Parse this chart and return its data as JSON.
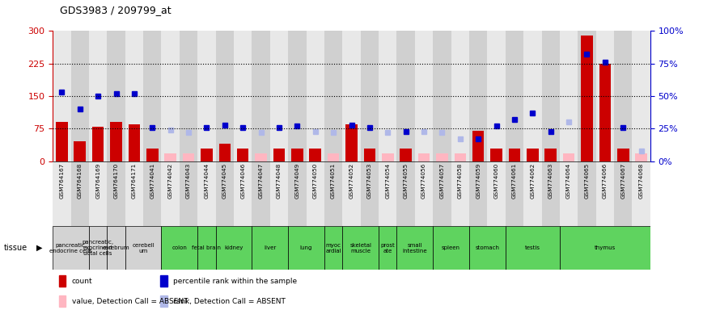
{
  "title": "GDS3983 / 209799_at",
  "samples": [
    "GSM764167",
    "GSM764168",
    "GSM764169",
    "GSM764170",
    "GSM764171",
    "GSM774041",
    "GSM774042",
    "GSM774043",
    "GSM774044",
    "GSM774045",
    "GSM774046",
    "GSM774047",
    "GSM774048",
    "GSM774049",
    "GSM774050",
    "GSM774051",
    "GSM774052",
    "GSM774053",
    "GSM774054",
    "GSM774055",
    "GSM774056",
    "GSM774057",
    "GSM774058",
    "GSM774059",
    "GSM774060",
    "GSM774061",
    "GSM774062",
    "GSM774063",
    "GSM774064",
    "GSM774065",
    "GSM774066",
    "GSM774067",
    "GSM774068"
  ],
  "count": [
    90,
    45,
    80,
    90,
    85,
    30,
    null,
    null,
    30,
    40,
    30,
    null,
    30,
    30,
    30,
    null,
    85,
    30,
    null,
    30,
    null,
    null,
    null,
    70,
    30,
    30,
    30,
    30,
    null,
    290,
    225,
    30,
    null
  ],
  "count_absent": [
    null,
    null,
    null,
    null,
    null,
    null,
    18,
    18,
    null,
    null,
    null,
    18,
    null,
    null,
    null,
    18,
    null,
    null,
    18,
    null,
    18,
    18,
    18,
    null,
    null,
    null,
    null,
    null,
    18,
    null,
    null,
    null,
    18
  ],
  "percentile": [
    53,
    40,
    50,
    52,
    52,
    26,
    null,
    null,
    26,
    28,
    26,
    null,
    26,
    27,
    null,
    null,
    28,
    26,
    null,
    23,
    null,
    null,
    null,
    17,
    27,
    32,
    37,
    23,
    null,
    82,
    76,
    26,
    null
  ],
  "percentile_absent": [
    null,
    null,
    null,
    null,
    null,
    null,
    24,
    22,
    null,
    null,
    null,
    22,
    null,
    null,
    23,
    22,
    null,
    null,
    22,
    null,
    23,
    22,
    17,
    null,
    null,
    null,
    null,
    null,
    30,
    null,
    null,
    null,
    8
  ],
  "tissues": [
    {
      "name": "pancreatic,\nendocrine cells",
      "start": 0,
      "end": 2,
      "color": "#d3d3d3"
    },
    {
      "name": "pancreatic,\nexocrine-d\nuctal cells",
      "start": 2,
      "end": 3,
      "color": "#d3d3d3"
    },
    {
      "name": "cerebrum",
      "start": 3,
      "end": 4,
      "color": "#d3d3d3"
    },
    {
      "name": "cerebell\num",
      "start": 4,
      "end": 6,
      "color": "#d3d3d3"
    },
    {
      "name": "colon",
      "start": 6,
      "end": 8,
      "color": "#5fd35f"
    },
    {
      "name": "fetal brain",
      "start": 8,
      "end": 9,
      "color": "#5fd35f"
    },
    {
      "name": "kidney",
      "start": 9,
      "end": 11,
      "color": "#5fd35f"
    },
    {
      "name": "liver",
      "start": 11,
      "end": 13,
      "color": "#5fd35f"
    },
    {
      "name": "lung",
      "start": 13,
      "end": 15,
      "color": "#5fd35f"
    },
    {
      "name": "myoc\nardial",
      "start": 15,
      "end": 16,
      "color": "#5fd35f"
    },
    {
      "name": "skeletal\nmuscle",
      "start": 16,
      "end": 18,
      "color": "#5fd35f"
    },
    {
      "name": "prost\nate",
      "start": 18,
      "end": 19,
      "color": "#5fd35f"
    },
    {
      "name": "small\nintestine",
      "start": 19,
      "end": 21,
      "color": "#5fd35f"
    },
    {
      "name": "spleen",
      "start": 21,
      "end": 23,
      "color": "#5fd35f"
    },
    {
      "name": "stomach",
      "start": 23,
      "end": 25,
      "color": "#5fd35f"
    },
    {
      "name": "testis",
      "start": 25,
      "end": 28,
      "color": "#5fd35f"
    },
    {
      "name": "thymus",
      "start": 28,
      "end": 33,
      "color": "#5fd35f"
    }
  ],
  "ylim_left": [
    0,
    300
  ],
  "yticks_left": [
    0,
    75,
    150,
    225,
    300
  ],
  "yticks_right": [
    0,
    25,
    50,
    75,
    100
  ],
  "hlines": [
    75,
    150,
    225
  ],
  "bar_color": "#cc0000",
  "bar_absent_color": "#ffb6c1",
  "dot_color": "#0000cc",
  "dot_absent_color": "#b0b8e8",
  "bg_color": "#ffffff",
  "left_axis_color": "#cc0000",
  "right_axis_color": "#0000cc",
  "plot_bg_color": "#ffffff",
  "col_bg_even": "#e8e8e8",
  "col_bg_odd": "#d0d0d0"
}
